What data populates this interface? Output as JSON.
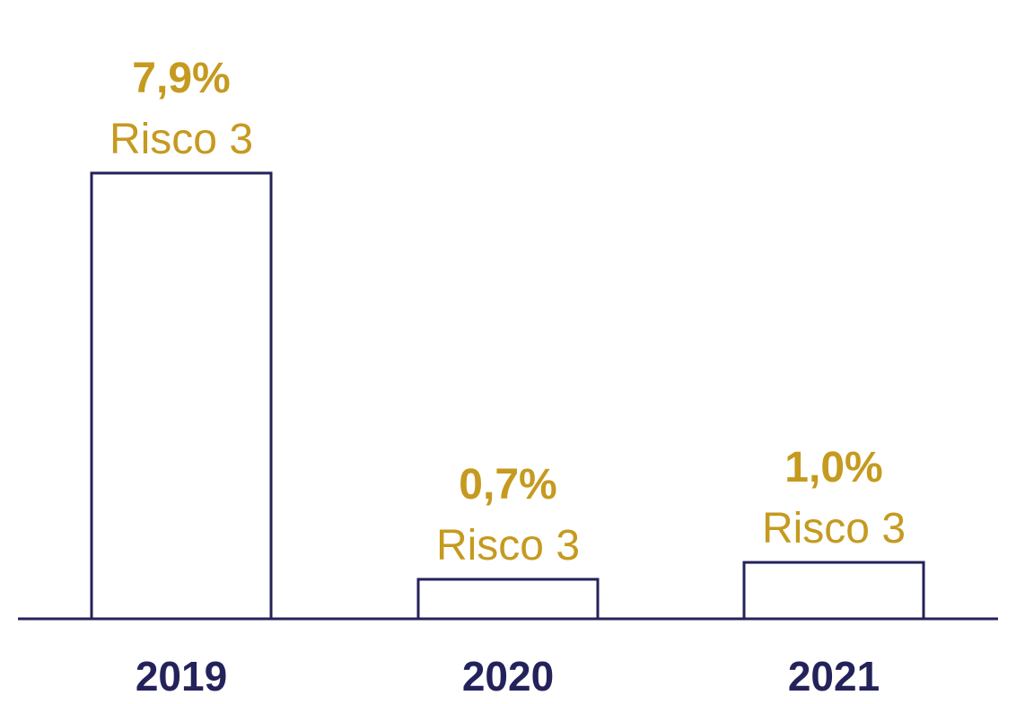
{
  "colors": {
    "bar_stroke": "#24225a",
    "axis": "#24225a",
    "tick_text": "#24225a",
    "value_text": "#c59a1f"
  },
  "chart_data": {
    "type": "bar",
    "title": "",
    "xlabel": "",
    "ylabel": "",
    "categories": [
      "2019",
      "2020",
      "2021"
    ],
    "values": [
      7.9,
      0.7,
      1.0
    ],
    "value_labels": [
      "7,9%",
      "0,7%",
      "1,0%"
    ],
    "sub_labels": [
      "Risco 3",
      "Risco 3",
      "Risco 3"
    ],
    "ylim": [
      0,
      7.9
    ],
    "grid": false,
    "legend": "none"
  }
}
